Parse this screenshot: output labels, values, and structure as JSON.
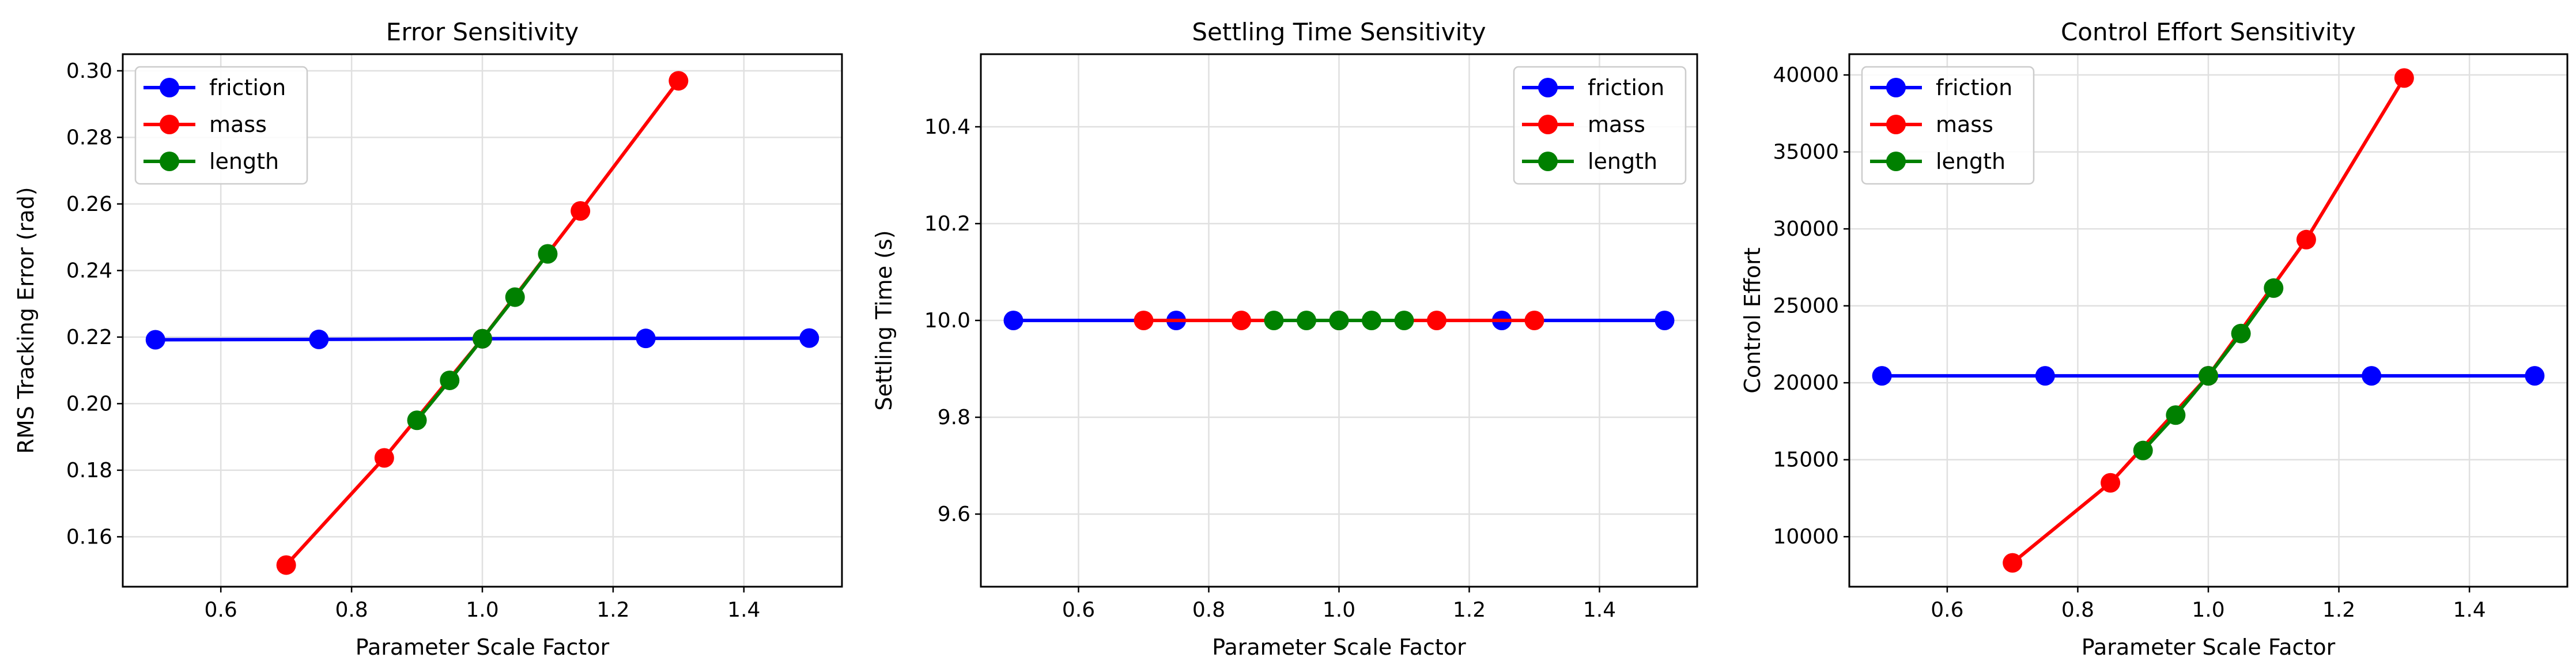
{
  "colors": {
    "friction": "#0000ff",
    "mass": "#ff0000",
    "length": "#008000",
    "grid": "#e0e0e0"
  },
  "chart_data": [
    {
      "type": "line",
      "title": "Error Sensitivity",
      "xlabel": "Parameter Scale Factor",
      "ylabel": "RMS Tracking Error (rad)",
      "xlim": [
        0.45,
        1.55
      ],
      "ylim": [
        0.145,
        0.305
      ],
      "xticks": [
        0.6,
        0.8,
        1.0,
        1.2,
        1.4
      ],
      "xtick_labels": [
        "0.6",
        "0.8",
        "1.0",
        "1.2",
        "1.4"
      ],
      "yticks": [
        0.16,
        0.18,
        0.2,
        0.22,
        0.24,
        0.26,
        0.28,
        0.3
      ],
      "ytick_labels": [
        "0.16",
        "0.18",
        "0.20",
        "0.22",
        "0.24",
        "0.26",
        "0.28",
        "0.30"
      ],
      "grid": true,
      "legend": "upper-left",
      "series": [
        {
          "name": "friction",
          "x": [
            0.5,
            0.75,
            1.0,
            1.25,
            1.5
          ],
          "y": [
            0.2192,
            0.2193,
            0.2195,
            0.2196,
            0.2197
          ]
        },
        {
          "name": "mass",
          "x": [
            0.7,
            0.85,
            1.0,
            1.15,
            1.3
          ],
          "y": [
            0.1515,
            0.1837,
            0.2195,
            0.2579,
            0.297
          ]
        },
        {
          "name": "length",
          "x": [
            0.9,
            0.95,
            1.0,
            1.05,
            1.1
          ],
          "y": [
            0.195,
            0.207,
            0.2195,
            0.232,
            0.245
          ]
        }
      ]
    },
    {
      "type": "line",
      "title": "Settling Time Sensitivity",
      "xlabel": "Parameter Scale Factor",
      "ylabel": "Settling Time (s)",
      "xlim": [
        0.45,
        1.55
      ],
      "ylim": [
        9.45,
        10.55
      ],
      "xticks": [
        0.6,
        0.8,
        1.0,
        1.2,
        1.4
      ],
      "xtick_labels": [
        "0.6",
        "0.8",
        "1.0",
        "1.2",
        "1.4"
      ],
      "yticks": [
        9.6,
        9.8,
        10.0,
        10.2,
        10.4
      ],
      "ytick_labels": [
        "9.6",
        "9.8",
        "10.0",
        "10.2",
        "10.4"
      ],
      "grid": true,
      "legend": "upper-right",
      "series": [
        {
          "name": "friction",
          "x": [
            0.5,
            0.75,
            1.0,
            1.25,
            1.5
          ],
          "y": [
            10.0,
            10.0,
            10.0,
            10.0,
            10.0
          ]
        },
        {
          "name": "mass",
          "x": [
            0.7,
            0.85,
            1.0,
            1.15,
            1.3
          ],
          "y": [
            10.0,
            10.0,
            10.0,
            10.0,
            10.0
          ]
        },
        {
          "name": "length",
          "x": [
            0.9,
            0.95,
            1.0,
            1.05,
            1.1
          ],
          "y": [
            10.0,
            10.0,
            10.0,
            10.0,
            10.0
          ]
        }
      ]
    },
    {
      "type": "line",
      "title": "Control Effort Sensitivity",
      "xlabel": "Parameter Scale Factor",
      "ylabel": "Control Effort",
      "xlim": [
        0.45,
        1.55
      ],
      "ylim": [
        6750,
        41350
      ],
      "xticks": [
        0.6,
        0.8,
        1.0,
        1.2,
        1.4
      ],
      "xtick_labels": [
        "0.6",
        "0.8",
        "1.0",
        "1.2",
        "1.4"
      ],
      "yticks": [
        10000,
        15000,
        20000,
        25000,
        30000,
        35000,
        40000
      ],
      "ytick_labels": [
        "10000",
        "15000",
        "20000",
        "25000",
        "30000",
        "35000",
        "40000"
      ],
      "grid": true,
      "legend": "upper-left",
      "series": [
        {
          "name": "friction",
          "x": [
            0.5,
            0.75,
            1.0,
            1.25,
            1.5
          ],
          "y": [
            20450,
            20450,
            20450,
            20450,
            20450
          ]
        },
        {
          "name": "mass",
          "x": [
            0.7,
            0.85,
            1.0,
            1.15,
            1.3
          ],
          "y": [
            8300,
            13500,
            20450,
            29300,
            39800
          ]
        },
        {
          "name": "length",
          "x": [
            0.9,
            0.95,
            1.0,
            1.05,
            1.1
          ],
          "y": [
            15600,
            17900,
            20450,
            23200,
            26150
          ]
        }
      ]
    }
  ]
}
